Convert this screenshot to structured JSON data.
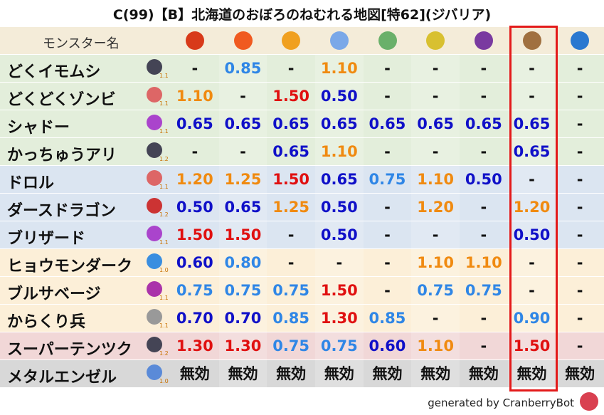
{
  "header": {
    "title": "C(99)【B】北海道のおぼろのねむれる地図[特62](ジバリア)"
  },
  "table": {
    "name_header": "モンスター名",
    "rows": [
      {
        "name": "どくイモムシ",
        "version": "1.1",
        "values": [
          "-",
          "0.85",
          "-",
          "1.10",
          "-",
          "-",
          "-",
          "-",
          "-"
        ]
      },
      {
        "name": "どくどくゾンビ",
        "version": "1.1",
        "values": [
          "1.10",
          "-",
          "1.50",
          "0.50",
          "-",
          "-",
          "-",
          "-",
          "-"
        ]
      },
      {
        "name": "シャドー",
        "version": "1.1",
        "values": [
          "0.65",
          "0.65",
          "0.65",
          "0.65",
          "0.65",
          "0.65",
          "0.65",
          "0.65",
          "-"
        ]
      },
      {
        "name": "かっちゅうアリ",
        "version": "1.2",
        "values": [
          "-",
          "-",
          "0.65",
          "1.10",
          "-",
          "-",
          "-",
          "0.65",
          "-"
        ]
      },
      {
        "name": "ドロル",
        "version": "1.1",
        "values": [
          "1.20",
          "1.25",
          "1.50",
          "0.65",
          "0.75",
          "1.10",
          "0.50",
          "-",
          "-"
        ]
      },
      {
        "name": "ダースドラゴン",
        "version": "1.2",
        "values": [
          "0.50",
          "0.65",
          "1.25",
          "0.50",
          "-",
          "1.20",
          "-",
          "1.20",
          "-"
        ]
      },
      {
        "name": "ブリザード",
        "version": "1.1",
        "values": [
          "1.50",
          "1.50",
          "-",
          "0.50",
          "-",
          "-",
          "-",
          "0.50",
          "-"
        ]
      },
      {
        "name": "ヒョウモンダーク",
        "version": "1.0",
        "values": [
          "0.60",
          "0.80",
          "-",
          "-",
          "-",
          "1.10",
          "1.10",
          "-",
          "-"
        ]
      },
      {
        "name": "ブルサベージ",
        "version": "1.1",
        "values": [
          "0.75",
          "0.75",
          "0.75",
          "1.50",
          "-",
          "0.75",
          "0.75",
          "-",
          "-"
        ]
      },
      {
        "name": "からくり兵",
        "version": "1.1",
        "values": [
          "0.70",
          "0.70",
          "0.85",
          "1.30",
          "0.85",
          "-",
          "-",
          "0.90",
          "-"
        ]
      },
      {
        "name": "スーパーテンツク",
        "version": "1.2",
        "values": [
          "1.30",
          "1.30",
          "0.75",
          "0.75",
          "0.60",
          "1.10",
          "-",
          "1.50",
          "-"
        ]
      },
      {
        "name": "メタルエンゼル",
        "version": "1.0",
        "values": [
          "無効",
          "無効",
          "無効",
          "無効",
          "無効",
          "無効",
          "無効",
          "無効",
          "無効"
        ]
      }
    ]
  },
  "footer": "generated by CranberryBot"
}
